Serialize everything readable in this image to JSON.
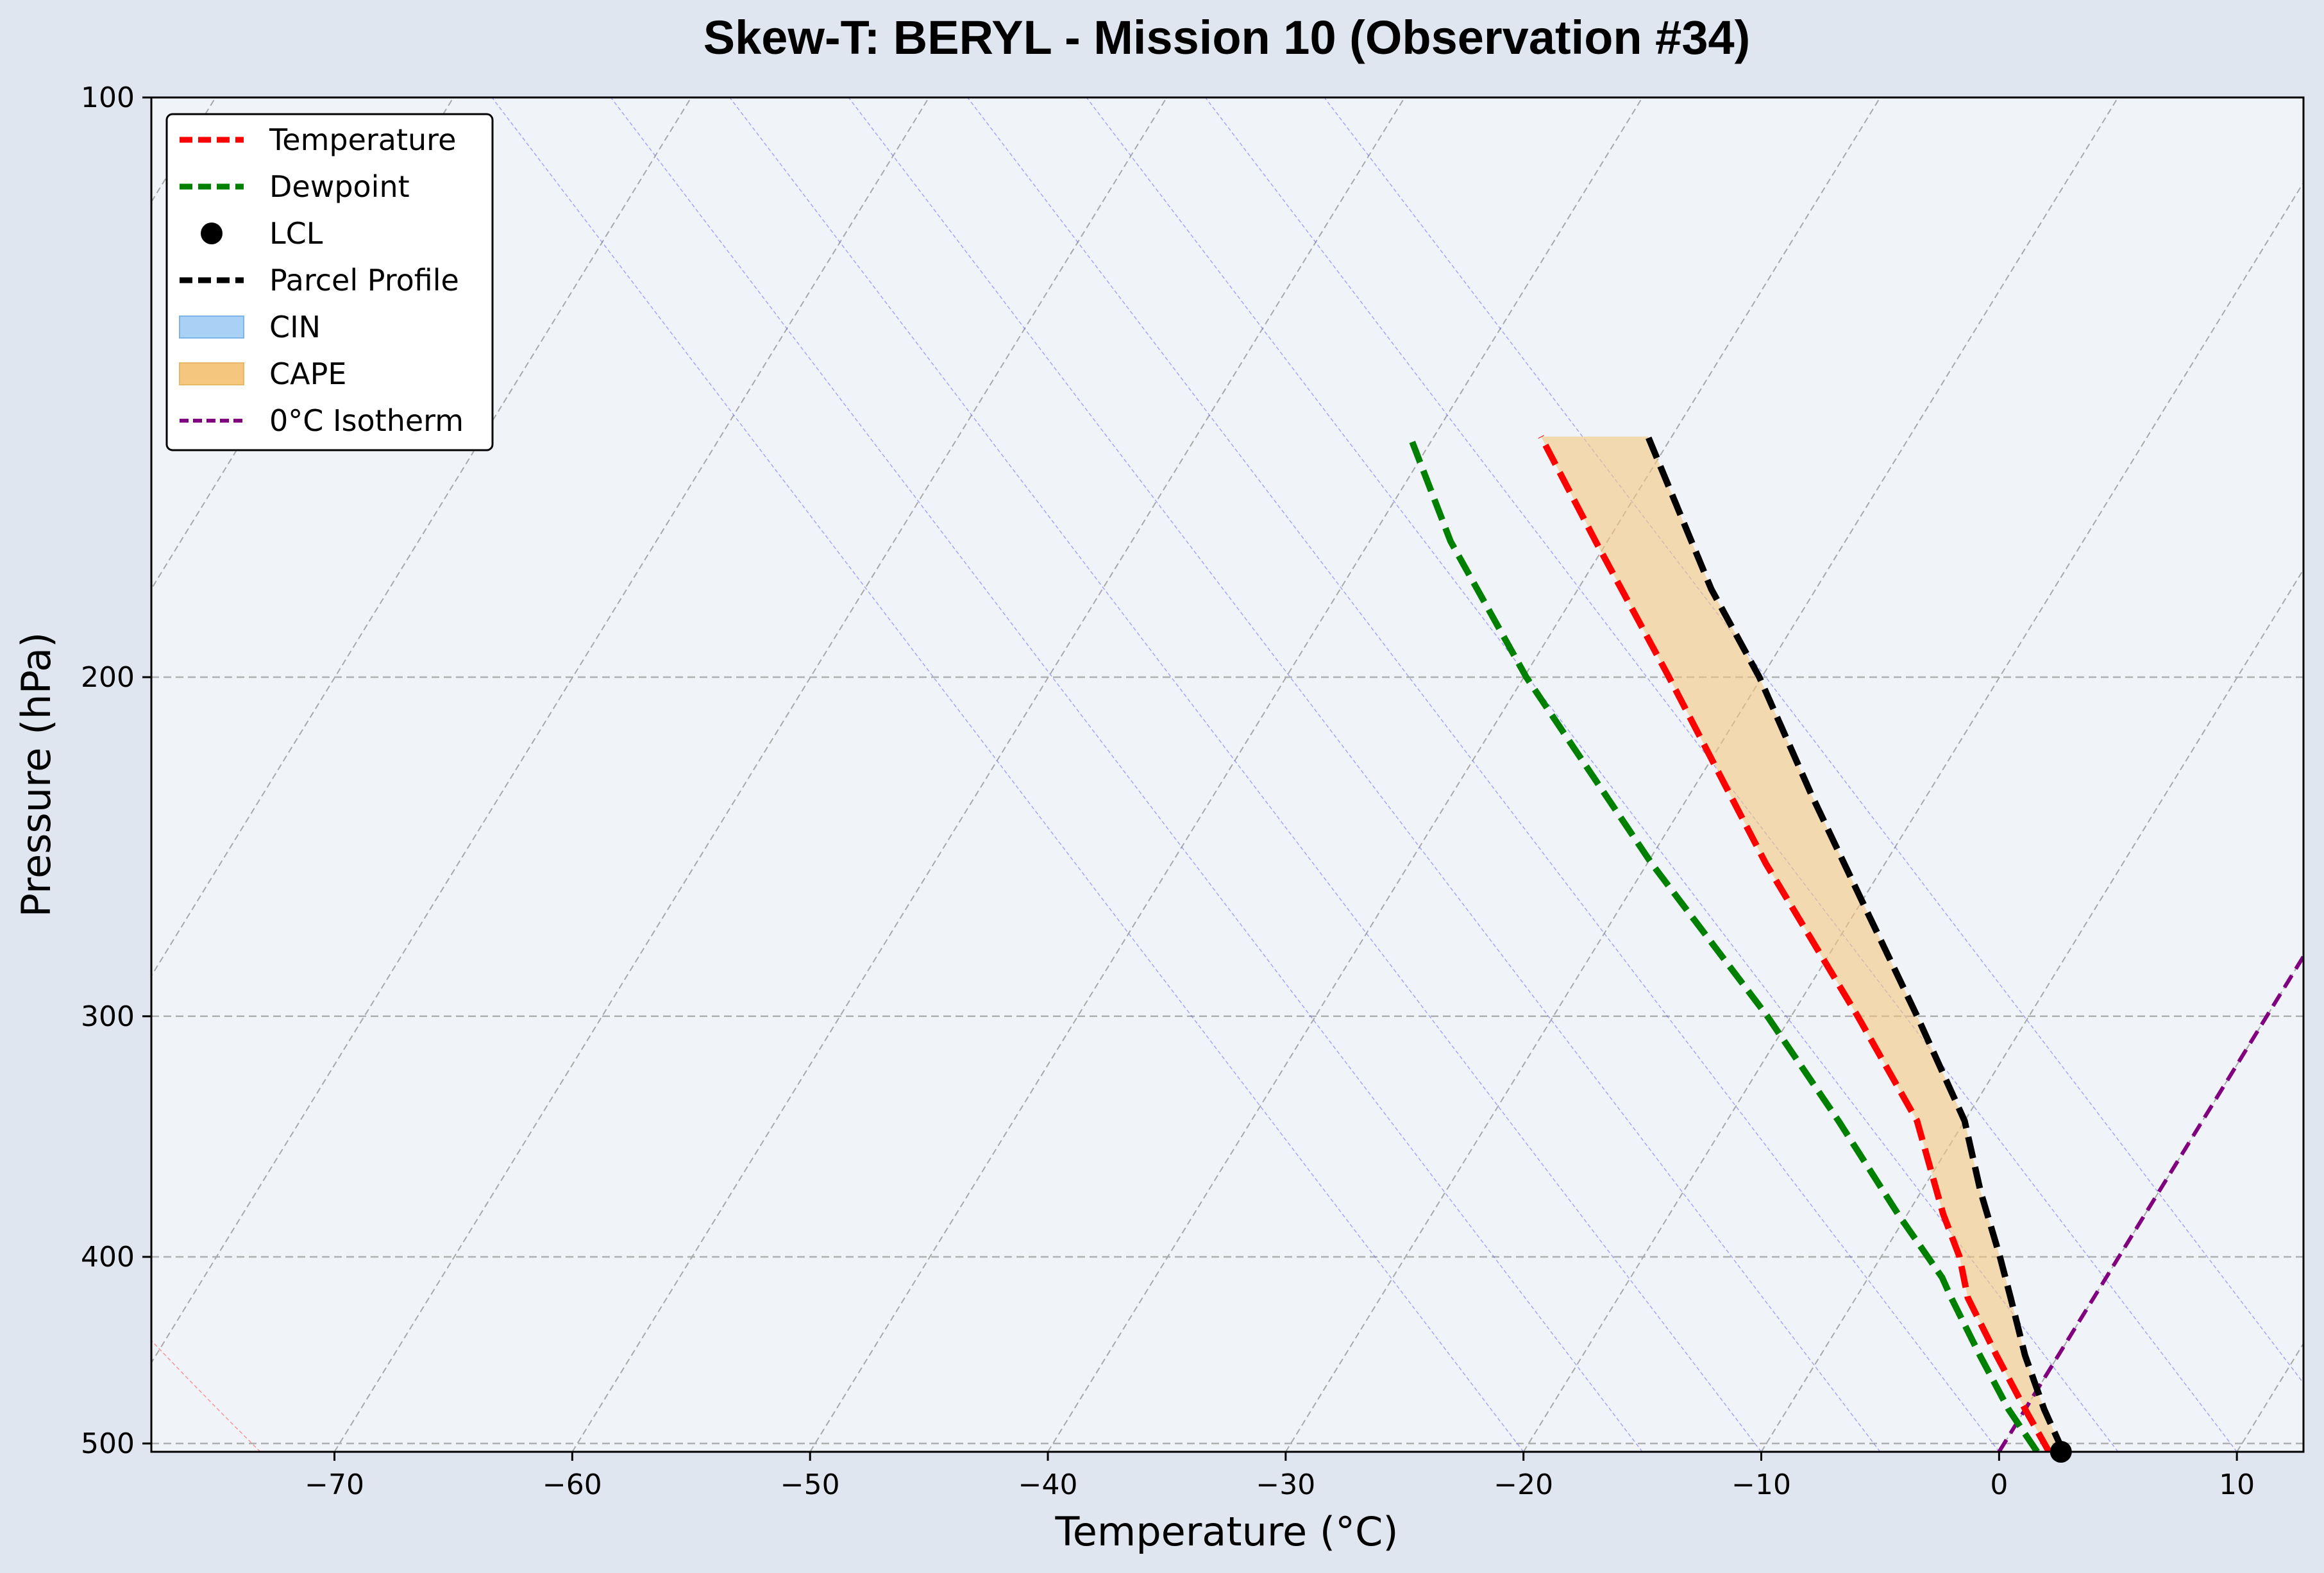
{
  "chart_data": {
    "type": "line",
    "title": "Skew-T: BERYL - Mission 10 (Observation #34)",
    "xlabel": "Temperature (°C)",
    "ylabel": "Pressure (hPa)",
    "xlim": [
      -77.7,
      12.8
    ],
    "ylim": [
      505,
      100
    ],
    "y_scale": "log",
    "skew": 35,
    "x_ticks": [
      -70,
      -60,
      -50,
      -40,
      -30,
      -20,
      -10,
      0,
      10
    ],
    "x_tick_labels": [
      "−70",
      "−60",
      "−50",
      "−40",
      "−30",
      "−20",
      "−10",
      "0",
      "10"
    ],
    "y_ticks": [
      100,
      200,
      300,
      400,
      500
    ],
    "y_tick_labels": [
      "100",
      "200",
      "300",
      "400",
      "500"
    ],
    "grid": true,
    "legend_position": "top-left",
    "series": [
      {
        "name": "Temperature",
        "color": "#ff0000",
        "style": "dashed",
        "points": [
          {
            "p": 505,
            "t": 2.1
          },
          {
            "p": 480,
            "t": 0.0
          },
          {
            "p": 450,
            "t": -2.6
          },
          {
            "p": 420,
            "t": -5.3
          },
          {
            "p": 400,
            "t": -6.7
          },
          {
            "p": 380,
            "t": -8.5
          },
          {
            "p": 340,
            "t": -12.0
          },
          {
            "p": 300,
            "t": -17.2
          },
          {
            "p": 250,
            "t": -25.0
          },
          {
            "p": 200,
            "t": -33.9
          },
          {
            "p": 170,
            "t": -40.5
          },
          {
            "p": 150,
            "t": -45.5
          }
        ]
      },
      {
        "name": "Dewpoint",
        "color": "#008000",
        "style": "dashed",
        "points": [
          {
            "p": 505,
            "t": 1.6
          },
          {
            "p": 480,
            "t": -0.7
          },
          {
            "p": 450,
            "t": -3.3
          },
          {
            "p": 420,
            "t": -6.0
          },
          {
            "p": 410,
            "t": -6.9
          },
          {
            "p": 380,
            "t": -10.4
          },
          {
            "p": 340,
            "t": -15.3
          },
          {
            "p": 300,
            "t": -21.0
          },
          {
            "p": 250,
            "t": -29.8
          },
          {
            "p": 200,
            "t": -39.9
          },
          {
            "p": 170,
            "t": -46.6
          },
          {
            "p": 150,
            "t": -51.0
          }
        ]
      },
      {
        "name": "Parcel Profile",
        "color": "#000000",
        "style": "dashed",
        "points": [
          {
            "p": 505,
            "t": 2.7
          },
          {
            "p": 480,
            "t": 0.8
          },
          {
            "p": 450,
            "t": -1.4
          },
          {
            "p": 420,
            "t": -3.5
          },
          {
            "p": 400,
            "t": -5.0
          },
          {
            "p": 370,
            "t": -7.5
          },
          {
            "p": 340,
            "t": -10.0
          },
          {
            "p": 300,
            "t": -14.7
          },
          {
            "p": 260,
            "t": -20.2
          },
          {
            "p": 230,
            "t": -24.9
          },
          {
            "p": 200,
            "t": -30.1
          },
          {
            "p": 180,
            "t": -34.4
          },
          {
            "p": 150,
            "t": -41.0
          }
        ]
      }
    ],
    "lcl": {
      "name": "LCL",
      "p": 505,
      "t": 2.6,
      "color": "#000000"
    },
    "cape": {
      "name": "CAPE",
      "color": "#f5c77e"
    },
    "cin": {
      "name": "CIN",
      "color": "#a9d0f5"
    },
    "isotherm": {
      "name": "0°C Isotherm",
      "t": 0,
      "color": "#800080"
    },
    "legend": [
      "Temperature",
      "Dewpoint",
      "LCL",
      "Parcel Profile",
      "CIN",
      "CAPE",
      "0°C Isotherm"
    ]
  }
}
